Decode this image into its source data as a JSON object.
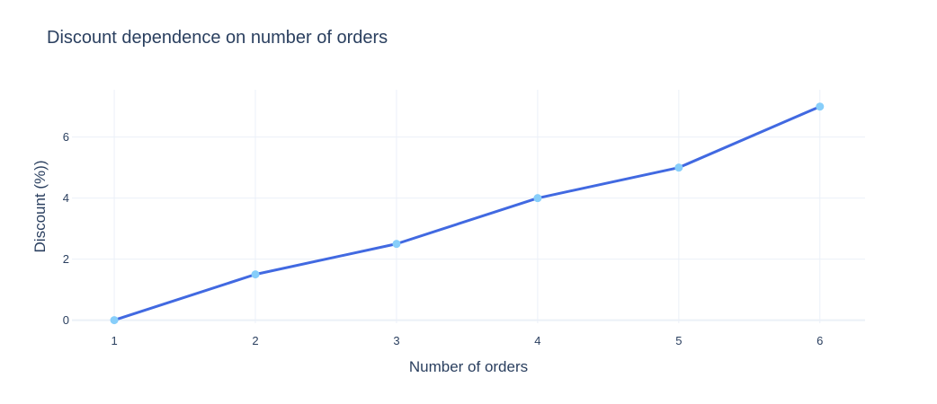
{
  "chart_data": {
    "type": "line",
    "title": "Discount dependence on number of orders",
    "xlabel": "Number of orders",
    "ylabel": "Discount (%))",
    "x": [
      1,
      2,
      3,
      4,
      5,
      6
    ],
    "x_ticks": [
      1,
      2,
      3,
      4,
      5,
      6
    ],
    "y_ticks": [
      0,
      2,
      4,
      6
    ],
    "xlim": [
      0.7,
      6.32
    ],
    "ylim": [
      -0.1,
      7.55
    ],
    "grid": true,
    "series": [
      {
        "values": [
          0,
          1.5,
          2.5,
          4,
          5,
          7
        ],
        "line_color": "#4169e1",
        "marker_color": "#87cefa"
      }
    ]
  }
}
